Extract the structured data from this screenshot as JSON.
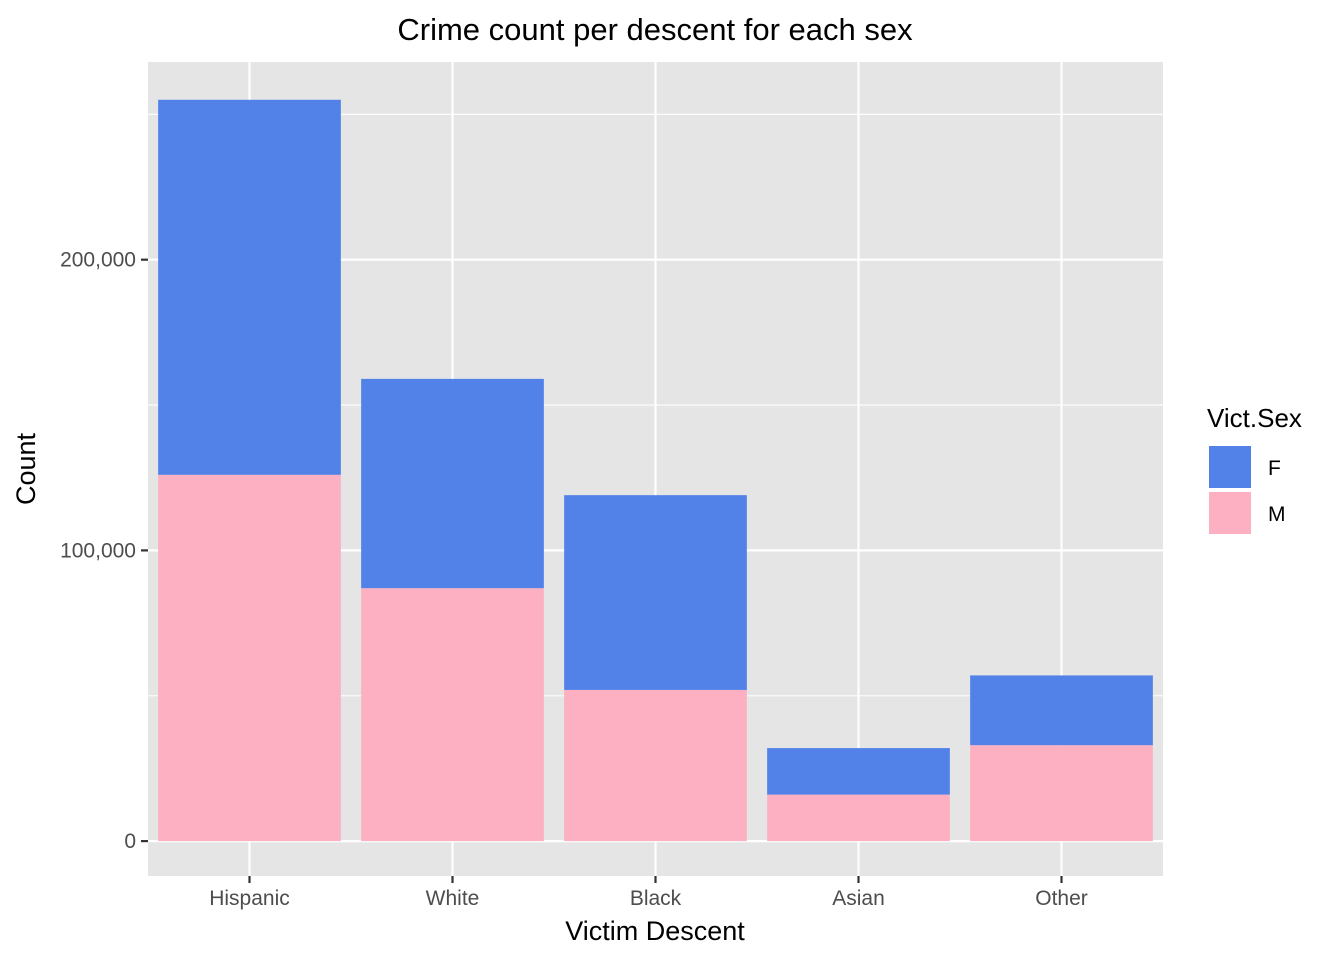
{
  "chart_data": {
    "type": "bar",
    "stacked": true,
    "title": "Crime count per descent for each sex",
    "xlabel": "Victim Descent",
    "ylabel": "Count",
    "categories": [
      "Hispanic",
      "White",
      "Black",
      "Asian",
      "Other"
    ],
    "series": [
      {
        "name": "F",
        "color": "#5282E8",
        "values": [
          129000,
          72000,
          67000,
          16000,
          24000
        ]
      },
      {
        "name": "M",
        "color": "#FDB0C1",
        "values": [
          126000,
          87000,
          52000,
          16000,
          33000
        ]
      }
    ],
    "ylim": [
      -12000,
      268000
    ],
    "yticks": [
      0,
      100000,
      200000
    ],
    "ytick_labels": [
      "0",
      "100,000",
      "200,000"
    ],
    "grid": true,
    "panel_background": "#E5E5E5",
    "legend": {
      "title": "Vict.Sex",
      "position": "right",
      "entries": [
        {
          "label": "F",
          "color": "#5282E8"
        },
        {
          "label": "M",
          "color": "#FDB0C1"
        }
      ]
    }
  }
}
